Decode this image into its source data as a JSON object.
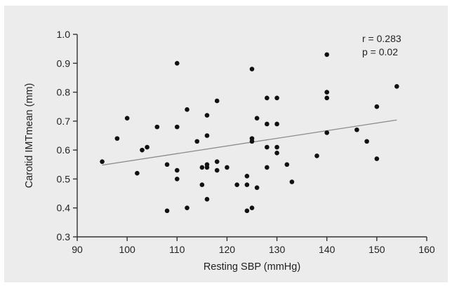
{
  "chart_data": {
    "type": "scatter",
    "title": "",
    "xlabel": "Resting SBP (mmHg)",
    "ylabel": "Carotid IMTmean (mm)",
    "xlim": [
      90,
      160
    ],
    "ylim": [
      0.3,
      1.0
    ],
    "xticks": [
      "90",
      "100",
      "110",
      "120",
      "130",
      "140",
      "150",
      "160"
    ],
    "yticks": [
      "0.3",
      "0.4",
      "0.5",
      "0.6",
      "0.7",
      "0.8",
      "0.9",
      "1.0"
    ],
    "grid": false,
    "annotations": [
      "r = 0.283",
      "p = 0.02"
    ],
    "points": [
      [
        95,
        0.56
      ],
      [
        98,
        0.64
      ],
      [
        100,
        0.71
      ],
      [
        102,
        0.52
      ],
      [
        103,
        0.6
      ],
      [
        104,
        0.61
      ],
      [
        106,
        0.68
      ],
      [
        108,
        0.55
      ],
      [
        108,
        0.39
      ],
      [
        110,
        0.9
      ],
      [
        110,
        0.68
      ],
      [
        110,
        0.53
      ],
      [
        110,
        0.5
      ],
      [
        112,
        0.74
      ],
      [
        112,
        0.4
      ],
      [
        114,
        0.63
      ],
      [
        115,
        0.54
      ],
      [
        115,
        0.48
      ],
      [
        116,
        0.72
      ],
      [
        116,
        0.65
      ],
      [
        116,
        0.55
      ],
      [
        116,
        0.54
      ],
      [
        116,
        0.43
      ],
      [
        118,
        0.77
      ],
      [
        118,
        0.56
      ],
      [
        118,
        0.53
      ],
      [
        120,
        0.54
      ],
      [
        122,
        0.48
      ],
      [
        124,
        0.51
      ],
      [
        124,
        0.48
      ],
      [
        124,
        0.39
      ],
      [
        125,
        0.88
      ],
      [
        125,
        0.64
      ],
      [
        125,
        0.63
      ],
      [
        125,
        0.4
      ],
      [
        126,
        0.71
      ],
      [
        126,
        0.47
      ],
      [
        128,
        0.78
      ],
      [
        128,
        0.69
      ],
      [
        128,
        0.61
      ],
      [
        128,
        0.54
      ],
      [
        130,
        0.78
      ],
      [
        130,
        0.69
      ],
      [
        130,
        0.61
      ],
      [
        130,
        0.59
      ],
      [
        132,
        0.55
      ],
      [
        133,
        0.49
      ],
      [
        138,
        0.58
      ],
      [
        140,
        0.93
      ],
      [
        140,
        0.8
      ],
      [
        140,
        0.78
      ],
      [
        140,
        0.66
      ],
      [
        146,
        0.67
      ],
      [
        148,
        0.63
      ],
      [
        150,
        0.75
      ],
      [
        150,
        0.57
      ],
      [
        154,
        0.82
      ]
    ],
    "trendline": {
      "x": [
        95,
        154
      ],
      "y": [
        0.548,
        0.704
      ]
    }
  }
}
